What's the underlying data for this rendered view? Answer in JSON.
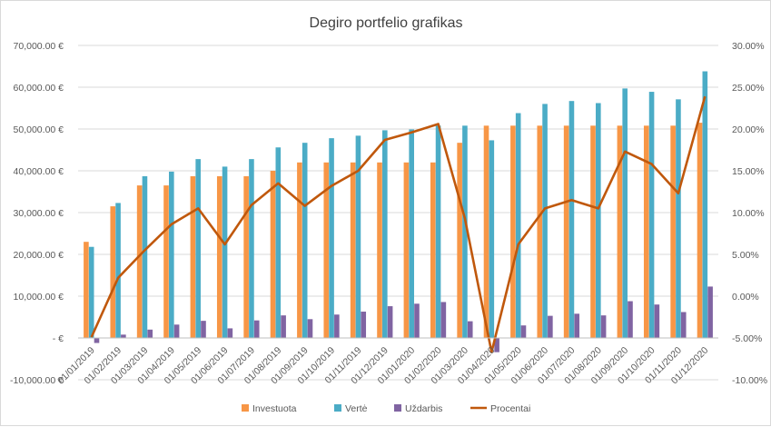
{
  "chart_data": {
    "type": "bar",
    "title": "Degiro portfelio grafikas",
    "categories": [
      "01/01/2019",
      "01/02/2019",
      "01/03/2019",
      "01/04/2019",
      "01/05/2019",
      "01/06/2019",
      "01/07/2019",
      "01/08/2019",
      "01/09/2019",
      "01/10/2019",
      "01/11/2019",
      "01/12/2019",
      "01/01/2020",
      "01/02/2020",
      "01/03/2020",
      "01/04/2020",
      "01/05/2020",
      "01/06/2020",
      "01/07/2020",
      "01/08/2020",
      "01/09/2020",
      "01/10/2020",
      "01/11/2020",
      "01/12/2020"
    ],
    "series": [
      {
        "name": "Investuota",
        "kind": "bar",
        "axis": "left",
        "color": "#F79646",
        "values": [
          23000,
          31500,
          36500,
          36500,
          38700,
          38700,
          38700,
          40000,
          42000,
          42000,
          42000,
          42000,
          42000,
          42000,
          46700,
          50800,
          50800,
          50800,
          50800,
          50800,
          50800,
          50800,
          50800,
          51500
        ]
      },
      {
        "name": "Vertė",
        "kind": "bar",
        "axis": "left",
        "color": "#4BACC6",
        "values": [
          21800,
          32300,
          38700,
          39800,
          42800,
          41000,
          42800,
          45600,
          46700,
          47800,
          48400,
          49700,
          49900,
          50800,
          50800,
          47300,
          53800,
          56000,
          56700,
          56200,
          59700,
          58900,
          57100,
          63800
        ]
      },
      {
        "name": "Uždarbis",
        "kind": "bar",
        "axis": "left",
        "color": "#8064A2",
        "values": [
          -1200,
          800,
          2000,
          3200,
          4100,
          2300,
          4200,
          5400,
          4500,
          5600,
          6300,
          7600,
          8200,
          8600,
          4000,
          -3400,
          3000,
          5300,
          5800,
          5400,
          8800,
          8000,
          6200,
          12300
        ]
      },
      {
        "name": "Procentai",
        "kind": "line",
        "axis": "right",
        "color": "#C0580C",
        "values": [
          -4.9,
          2.2,
          5.5,
          8.6,
          10.5,
          6.2,
          10.9,
          13.5,
          10.8,
          13.2,
          15.0,
          18.7,
          19.6,
          20.6,
          9.3,
          -6.7,
          6.2,
          10.5,
          11.5,
          10.5,
          17.3,
          15.8,
          12.3,
          23.9
        ]
      }
    ],
    "yleft": {
      "min": -10000,
      "max": 70000,
      "step": 10000,
      "tick_labels": [
        "-10,000.00 €",
        "- €",
        "10,000.00 €",
        "20,000.00 €",
        "30,000.00 €",
        "40,000.00 €",
        "50,000.00 €",
        "60,000.00 €",
        "70,000.00 €"
      ]
    },
    "yright": {
      "min": -10,
      "max": 30,
      "step": 5,
      "tick_labels": [
        "-10.00%",
        "-5.00%",
        "0.00%",
        "5.00%",
        "10.00%",
        "15.00%",
        "20.00%",
        "25.00%",
        "30.00%"
      ]
    },
    "grid": true,
    "legend_position": "bottom"
  }
}
